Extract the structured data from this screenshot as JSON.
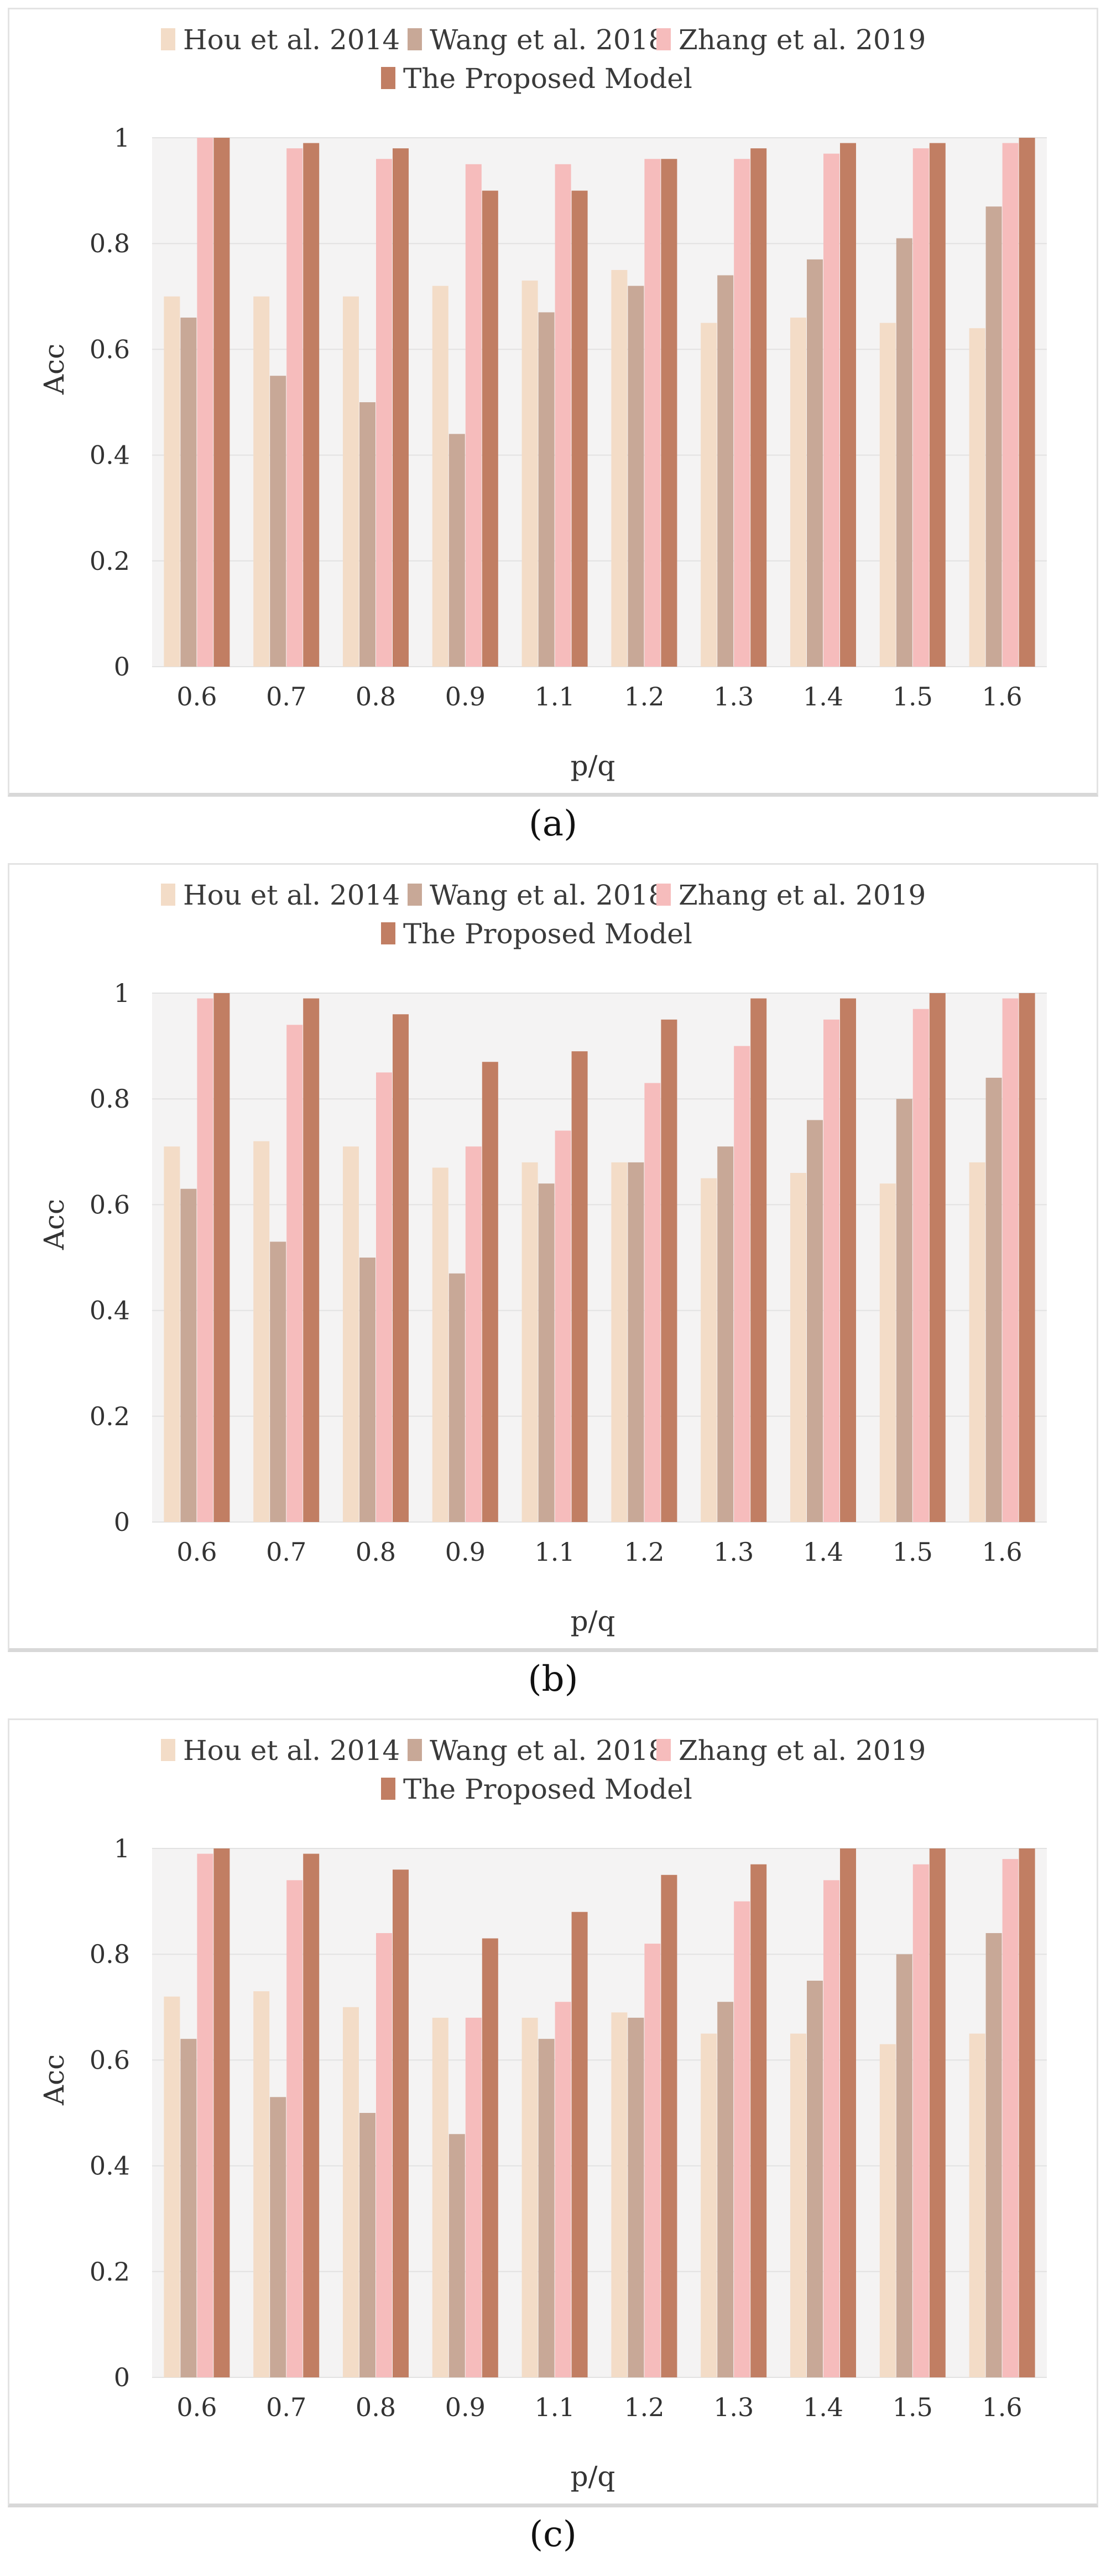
{
  "colors": {
    "hou": "#f3dcc7",
    "wang": "#c8a897",
    "zhang": "#f6bcbc",
    "proposed": "#c17e63",
    "plot_bg": "#f4f3f3",
    "grid": "#e2e2e2"
  },
  "chart_data": [
    {
      "type": "bar",
      "caption": "(a)",
      "xlabel": "p/q",
      "ylabel": "Acc",
      "ylim": [
        0,
        1
      ],
      "yticks": [
        "0",
        "0.2",
        "0.4",
        "0.6",
        "0.8",
        "1"
      ],
      "categories": [
        "0.6",
        "0.7",
        "0.8",
        "0.9",
        "1.1",
        "1.2",
        "1.3",
        "1.4",
        "1.5",
        "1.6"
      ],
      "legend": "top",
      "series": [
        {
          "name": "Hou et al. 2014",
          "values": [
            0.7,
            0.7,
            0.7,
            0.72,
            0.73,
            0.75,
            0.65,
            0.66,
            0.65,
            0.64
          ]
        },
        {
          "name": "Wang et al. 2018",
          "values": [
            0.66,
            0.55,
            0.5,
            0.44,
            0.67,
            0.72,
            0.74,
            0.77,
            0.81,
            0.87
          ]
        },
        {
          "name": "Zhang et al. 2019",
          "values": [
            1.0,
            0.98,
            0.96,
            0.95,
            0.95,
            0.96,
            0.96,
            0.97,
            0.98,
            0.99
          ]
        },
        {
          "name": "The Proposed Model",
          "values": [
            1.0,
            0.99,
            0.98,
            0.9,
            0.9,
            0.96,
            0.98,
            0.99,
            0.99,
            1.0
          ]
        }
      ]
    },
    {
      "type": "bar",
      "caption": "(b)",
      "xlabel": "p/q",
      "ylabel": "Acc",
      "ylim": [
        0,
        1
      ],
      "yticks": [
        "0",
        "0.2",
        "0.4",
        "0.6",
        "0.8",
        "1"
      ],
      "categories": [
        "0.6",
        "0.7",
        "0.8",
        "0.9",
        "1.1",
        "1.2",
        "1.3",
        "1.4",
        "1.5",
        "1.6"
      ],
      "legend": "top",
      "series": [
        {
          "name": "Hou et al. 2014",
          "values": [
            0.71,
            0.72,
            0.71,
            0.67,
            0.68,
            0.68,
            0.65,
            0.66,
            0.64,
            0.68
          ]
        },
        {
          "name": "Wang et al. 2018",
          "values": [
            0.63,
            0.53,
            0.5,
            0.47,
            0.64,
            0.68,
            0.71,
            0.76,
            0.8,
            0.84
          ]
        },
        {
          "name": "Zhang et al. 2019",
          "values": [
            0.99,
            0.94,
            0.85,
            0.71,
            0.74,
            0.83,
            0.9,
            0.95,
            0.97,
            0.99
          ]
        },
        {
          "name": "The Proposed Model",
          "values": [
            1.0,
            0.99,
            0.96,
            0.87,
            0.89,
            0.95,
            0.99,
            0.99,
            1.0,
            1.0
          ]
        }
      ]
    },
    {
      "type": "bar",
      "caption": "(c)",
      "xlabel": "p/q",
      "ylabel": "Acc",
      "ylim": [
        0,
        1
      ],
      "yticks": [
        "0",
        "0.2",
        "0.4",
        "0.6",
        "0.8",
        "1"
      ],
      "categories": [
        "0.6",
        "0.7",
        "0.8",
        "0.9",
        "1.1",
        "1.2",
        "1.3",
        "1.4",
        "1.5",
        "1.6"
      ],
      "legend": "top",
      "series": [
        {
          "name": "Hou et al. 2014",
          "values": [
            0.72,
            0.73,
            0.7,
            0.68,
            0.68,
            0.69,
            0.65,
            0.65,
            0.63,
            0.65
          ]
        },
        {
          "name": "Wang et al. 2018",
          "values": [
            0.64,
            0.53,
            0.5,
            0.46,
            0.64,
            0.68,
            0.71,
            0.75,
            0.8,
            0.84
          ]
        },
        {
          "name": "Zhang et al. 2019",
          "values": [
            0.99,
            0.94,
            0.84,
            0.68,
            0.71,
            0.82,
            0.9,
            0.94,
            0.97,
            0.98
          ]
        },
        {
          "name": "The Proposed Model",
          "values": [
            1.0,
            0.99,
            0.96,
            0.83,
            0.88,
            0.95,
            0.97,
            1.0,
            1.0,
            1.0
          ]
        }
      ]
    }
  ]
}
